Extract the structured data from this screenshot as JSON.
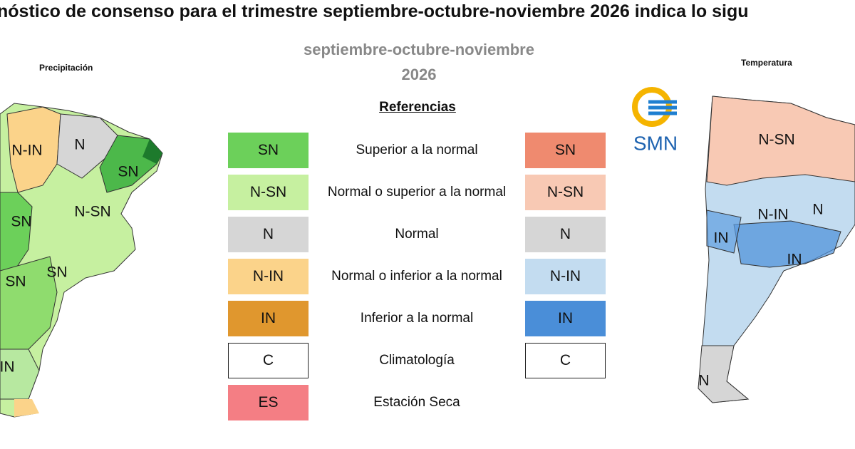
{
  "header": {
    "title": "nóstico de consenso para el trimestre septiembre-octubre-noviembre 2026 indica lo sigu"
  },
  "subtitle": {
    "period": "septiembre-octubre-noviembre",
    "year": "2026"
  },
  "logo": "SMN",
  "legend": {
    "title": "Referencias",
    "rows": [
      {
        "precip": "SN",
        "description": "Superior a la normal",
        "temp": "SN"
      },
      {
        "precip": "N-SN",
        "description": "Normal o superior a la normal",
        "temp": "N-SN"
      },
      {
        "precip": "N",
        "description": "Normal",
        "temp": "N"
      },
      {
        "precip": "N-IN",
        "description": "Normal o inferior a la normal",
        "temp": "N-IN"
      },
      {
        "precip": "IN",
        "description": "Inferior a la normal",
        "temp": "IN"
      },
      {
        "precip": "C",
        "description": "Climatología",
        "temp": "C"
      },
      {
        "precip": "ES",
        "description": "Estación Seca"
      }
    ]
  },
  "maps": [
    {
      "title": "Precipitación",
      "labels": [
        "N-IN",
        "N",
        "SN",
        "N-SN",
        "SN",
        "SN",
        "SN",
        "IN"
      ]
    },
    {
      "title": "Temperatura",
      "labels": [
        "N-SN",
        "N-IN",
        "IN",
        "IN",
        "N",
        "N"
      ]
    }
  ]
}
